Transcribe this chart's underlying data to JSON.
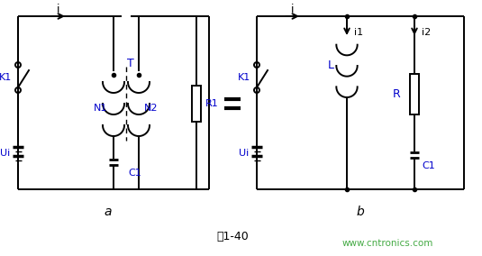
{
  "background_color": "#ffffff",
  "line_color": "#000000",
  "label_color": "#0000cc",
  "watermark_color": "#44aa44",
  "watermark_text": "www.cntronics.com",
  "caption": "图1-40",
  "label_a": "a",
  "label_b": "b",
  "figsize": [
    5.35,
    2.84
  ],
  "dpi": 100
}
